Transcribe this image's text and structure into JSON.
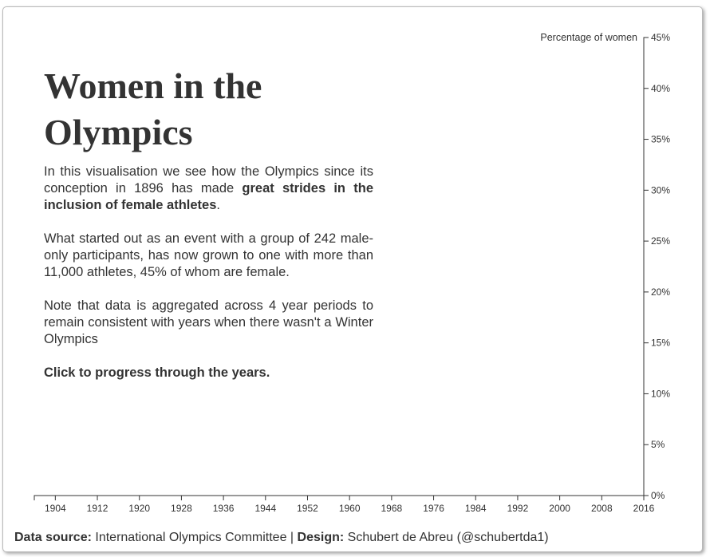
{
  "title": "Women in the Olympics",
  "intro": {
    "p1_before": "In this visualisation we see how the Olympics since its conception in 1896 has made ",
    "p1_bold": "great strides in the inclusion of female athletes",
    "p1_after": ".",
    "p2": "What started out as an event with a group of 242 male-only participants, has now grown to one with more than 11,000 athletes, 45% of whom are female.",
    "p3": "Note that data is aggregated across 4 year periods to remain consistent with years when there wasn't a Winter Olympics",
    "cta": "Click to progress through the years."
  },
  "footer": {
    "source_label": "Data source:",
    "source_value": "International Olympics Committee",
    "separator": "|",
    "design_label": "Design:",
    "design_value": "Schubert de Abreu (@schubertda1)"
  },
  "chart_data": {
    "type": "line",
    "ylabel": "Percentage of women",
    "xlabel": "",
    "xlim": [
      1900,
      2016
    ],
    "ylim": [
      0,
      45
    ],
    "x_ticks": [
      1904,
      1912,
      1920,
      1928,
      1936,
      1944,
      1952,
      1960,
      1968,
      1976,
      1984,
      1992,
      2000,
      2008,
      2016
    ],
    "y_ticks": [
      0,
      5,
      10,
      15,
      20,
      25,
      30,
      35,
      40,
      45
    ],
    "y_tick_labels": [
      "0%",
      "5%",
      "10%",
      "15%",
      "20%",
      "25%",
      "30%",
      "35%",
      "40%",
      "45%"
    ],
    "series": [],
    "grid": false,
    "colors": {
      "axis": "#333333",
      "text": "#333333"
    }
  }
}
